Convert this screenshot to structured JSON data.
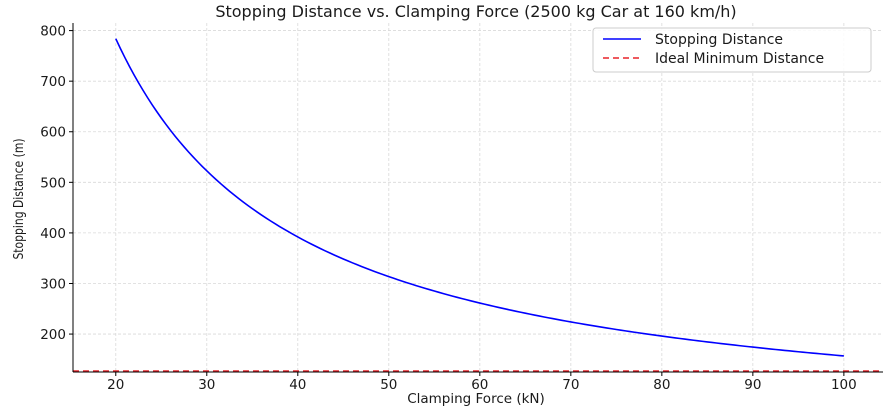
{
  "chart_data": {
    "type": "line",
    "title": "Stopping Distance vs. Clamping Force (2500 kg Car at 160 km/h)",
    "xlabel": "Clamping Force (kN)",
    "ylabel": "Stopping Distance (m)",
    "xlim": [
      15.3,
      104.3
    ],
    "ylim": [
      125,
      815
    ],
    "xticks": [
      20,
      30,
      40,
      50,
      60,
      70,
      80,
      90,
      100
    ],
    "yticks": [
      200,
      300,
      400,
      500,
      600,
      700,
      800
    ],
    "grid": true,
    "legend_position": "top-right",
    "series": [
      {
        "name": "Stopping Distance",
        "style": "solid",
        "color": "#0000ff",
        "x": [
          20,
          22,
          24,
          26,
          28,
          30,
          32,
          35,
          40,
          45,
          50,
          55,
          60,
          65,
          70,
          75,
          80,
          85,
          90,
          95,
          100
        ],
        "y": [
          784,
          713,
          653,
          603,
          560,
          523,
          490,
          448,
          392,
          349,
          314,
          285,
          261,
          241,
          224,
          209,
          196,
          184,
          174,
          165,
          157
        ]
      },
      {
        "name": "Ideal Minimum Distance",
        "style": "dashed",
        "color": "#e8232a",
        "x": [
          15.3,
          104.3
        ],
        "y": [
          127,
          127
        ]
      }
    ]
  }
}
